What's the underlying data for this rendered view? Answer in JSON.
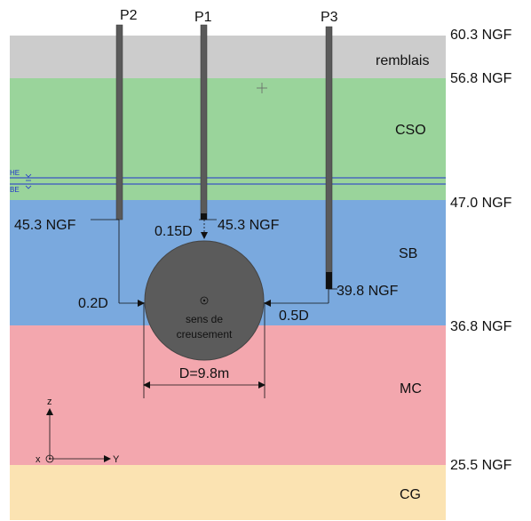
{
  "colors": {
    "remblais": "#cccccc",
    "cso": "#9ad49b",
    "sb": "#7aa9de",
    "mc": "#f3a7ae",
    "cg": "#fbe3b2",
    "pile": "#5a5a5a",
    "tunnel": "#5b5b5b",
    "water_line": "#2233cc"
  },
  "levels": {
    "top": "60.3 NGF",
    "remblais_base": "56.8 NGF",
    "cso_base": "47.0 NGF",
    "sb_base": "36.8 NGF",
    "mc_base": "25.5 NGF"
  },
  "layers": {
    "remblais": "remblais",
    "cso": "CSO",
    "sb": "SB",
    "mc": "MC",
    "cg": "CG"
  },
  "water": {
    "he": "HE",
    "be": "BE"
  },
  "piles": {
    "p1": {
      "name": "P1",
      "toe": "45.3 NGF"
    },
    "p2": {
      "name": "P2",
      "toe": "45.3 NGF"
    },
    "p3": {
      "name": "P3",
      "toe": "39.8 NGF"
    }
  },
  "dimensions": {
    "p1_gap": "0.15D",
    "p2_offset": "0.2D",
    "p3_offset": "0.5D",
    "diameter": "D=9.8m"
  },
  "tunnel": {
    "line1": "sens de",
    "line2": "creusement"
  },
  "axes": {
    "z": "z",
    "x": "x",
    "y": "Y"
  }
}
